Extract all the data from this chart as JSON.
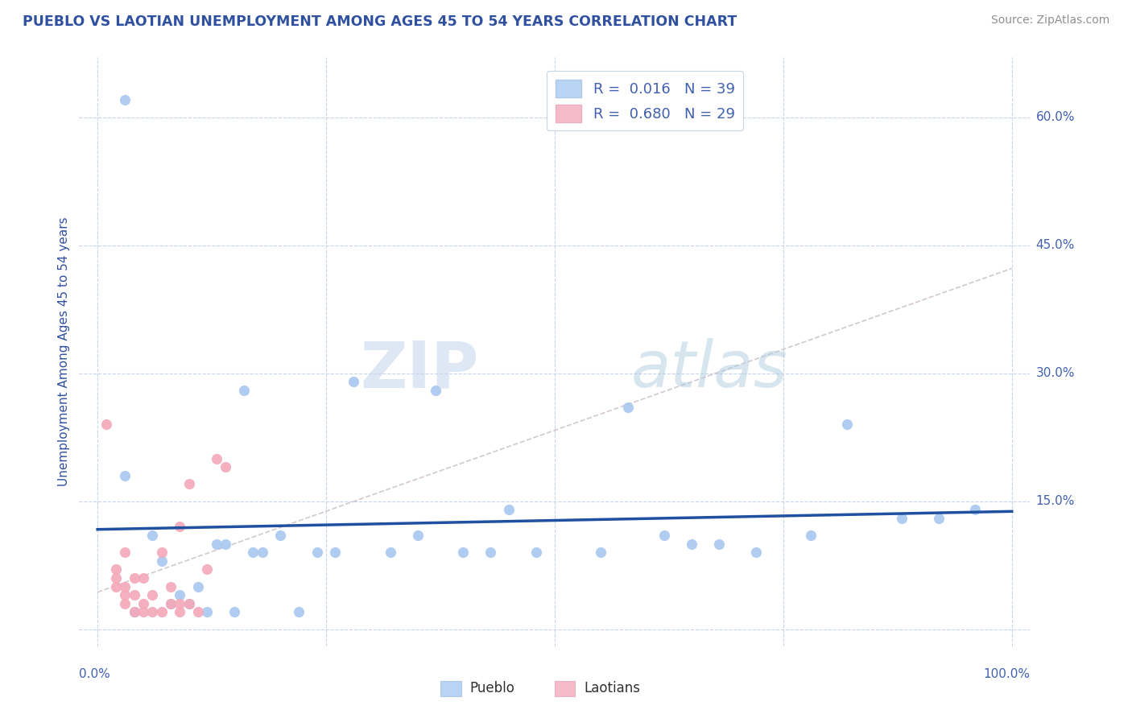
{
  "title": "PUEBLO VS LAOTIAN UNEMPLOYMENT AMONG AGES 45 TO 54 YEARS CORRELATION CHART",
  "source": "Source: ZipAtlas.com",
  "ylabel": "Unemployment Among Ages 45 to 54 years",
  "xlim": [
    -0.02,
    1.02
  ],
  "ylim": [
    -0.02,
    0.67
  ],
  "xticks": [
    0.0,
    0.25,
    0.5,
    0.75,
    1.0
  ],
  "xticklabels_bottom": [
    "0.0%",
    "",
    "",
    "",
    "100.0%"
  ],
  "yticks": [
    0.0,
    0.15,
    0.3,
    0.45,
    0.6
  ],
  "yticklabels_right": [
    "",
    "15.0%",
    "30.0%",
    "45.0%",
    "60.0%"
  ],
  "pueblo_R": "0.016",
  "pueblo_N": "39",
  "laotian_R": "0.680",
  "laotian_N": "29",
  "pueblo_color": "#a8c8f0",
  "laotian_color": "#f4a8b8",
  "pueblo_line_color": "#2050a0",
  "laotian_line_color": "#e08098",
  "legend_box_pueblo": "#b8d4f4",
  "legend_box_laotian": "#f4bcc8",
  "pueblo_points_x": [
    0.03,
    0.04,
    0.06,
    0.07,
    0.08,
    0.09,
    0.1,
    0.11,
    0.12,
    0.13,
    0.14,
    0.15,
    0.16,
    0.17,
    0.18,
    0.2,
    0.22,
    0.24,
    0.26,
    0.28,
    0.32,
    0.35,
    0.37,
    0.4,
    0.43,
    0.45,
    0.48,
    0.55,
    0.58,
    0.62,
    0.65,
    0.68,
    0.72,
    0.78,
    0.82,
    0.88,
    0.92,
    0.96,
    0.03
  ],
  "pueblo_points_y": [
    0.62,
    0.02,
    0.11,
    0.08,
    0.03,
    0.04,
    0.03,
    0.05,
    0.02,
    0.1,
    0.1,
    0.02,
    0.28,
    0.09,
    0.09,
    0.11,
    0.02,
    0.09,
    0.09,
    0.29,
    0.09,
    0.11,
    0.28,
    0.09,
    0.09,
    0.14,
    0.09,
    0.09,
    0.26,
    0.11,
    0.1,
    0.1,
    0.09,
    0.11,
    0.24,
    0.13,
    0.13,
    0.14,
    0.18
  ],
  "laotian_points_x": [
    0.01,
    0.02,
    0.02,
    0.02,
    0.03,
    0.03,
    0.03,
    0.03,
    0.04,
    0.04,
    0.04,
    0.05,
    0.05,
    0.05,
    0.06,
    0.06,
    0.07,
    0.07,
    0.08,
    0.08,
    0.09,
    0.09,
    0.09,
    0.1,
    0.1,
    0.11,
    0.12,
    0.13,
    0.14
  ],
  "laotian_points_y": [
    0.24,
    0.05,
    0.06,
    0.07,
    0.03,
    0.04,
    0.05,
    0.09,
    0.02,
    0.04,
    0.06,
    0.02,
    0.03,
    0.06,
    0.02,
    0.04,
    0.02,
    0.09,
    0.03,
    0.05,
    0.02,
    0.03,
    0.12,
    0.03,
    0.17,
    0.02,
    0.07,
    0.2,
    0.19
  ],
  "watermark_zip": "ZIP",
  "watermark_atlas": "atlas",
  "background_color": "#ffffff",
  "grid_color": "#c8d4e8",
  "title_color": "#3050a0",
  "axis_label_color": "#3050a0",
  "tick_label_color": "#4060b0",
  "source_color": "#909090"
}
